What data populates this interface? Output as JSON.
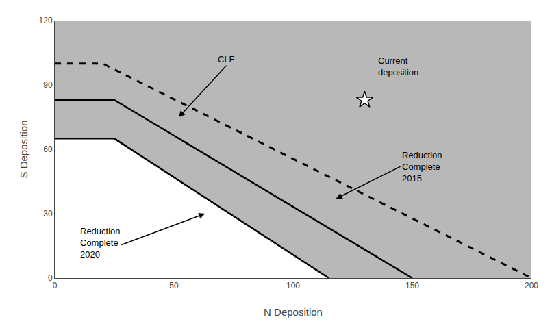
{
  "chart_data": {
    "type": "line",
    "xlabel": "N Deposition",
    "ylabel": "S Deposition",
    "xlim": [
      0,
      200
    ],
    "ylim": [
      0,
      120
    ],
    "xticks": [
      0,
      50,
      100,
      150,
      200
    ],
    "yticks": [
      0,
      30,
      60,
      90,
      120
    ],
    "grid": false,
    "series": [
      {
        "x": [
          0,
          20,
          200
        ],
        "values": [
          100,
          100,
          0
        ],
        "color": "black",
        "line_style": "dashed"
      },
      {
        "x": [
          0,
          25,
          150
        ],
        "values": [
          83,
          83,
          0
        ],
        "color": "black",
        "line_style": "solid"
      },
      {
        "x": [
          0,
          25,
          115
        ],
        "values": [
          65,
          65,
          0
        ],
        "color": "black",
        "line_style": "solid"
      },
      {
        "type": "scatter",
        "x": [
          130
        ],
        "values": [
          83
        ],
        "color": "white",
        "marker": "star"
      }
    ],
    "annotations": [
      {
        "text": "CLF",
        "x": 52,
        "y": 75,
        "text_x": 72,
        "text_y": 99
      },
      {
        "text": "Current\ndeposition",
        "x": 135,
        "y": 93
      },
      {
        "text": "Reduction\nComplete\n2015",
        "x": 118,
        "y": 37,
        "text_x": 145,
        "text_y": 52
      },
      {
        "text": "Reduction\nComplete\n2020",
        "x": 63,
        "y": 30,
        "text_x": 10,
        "text_y": 8
      }
    ]
  }
}
